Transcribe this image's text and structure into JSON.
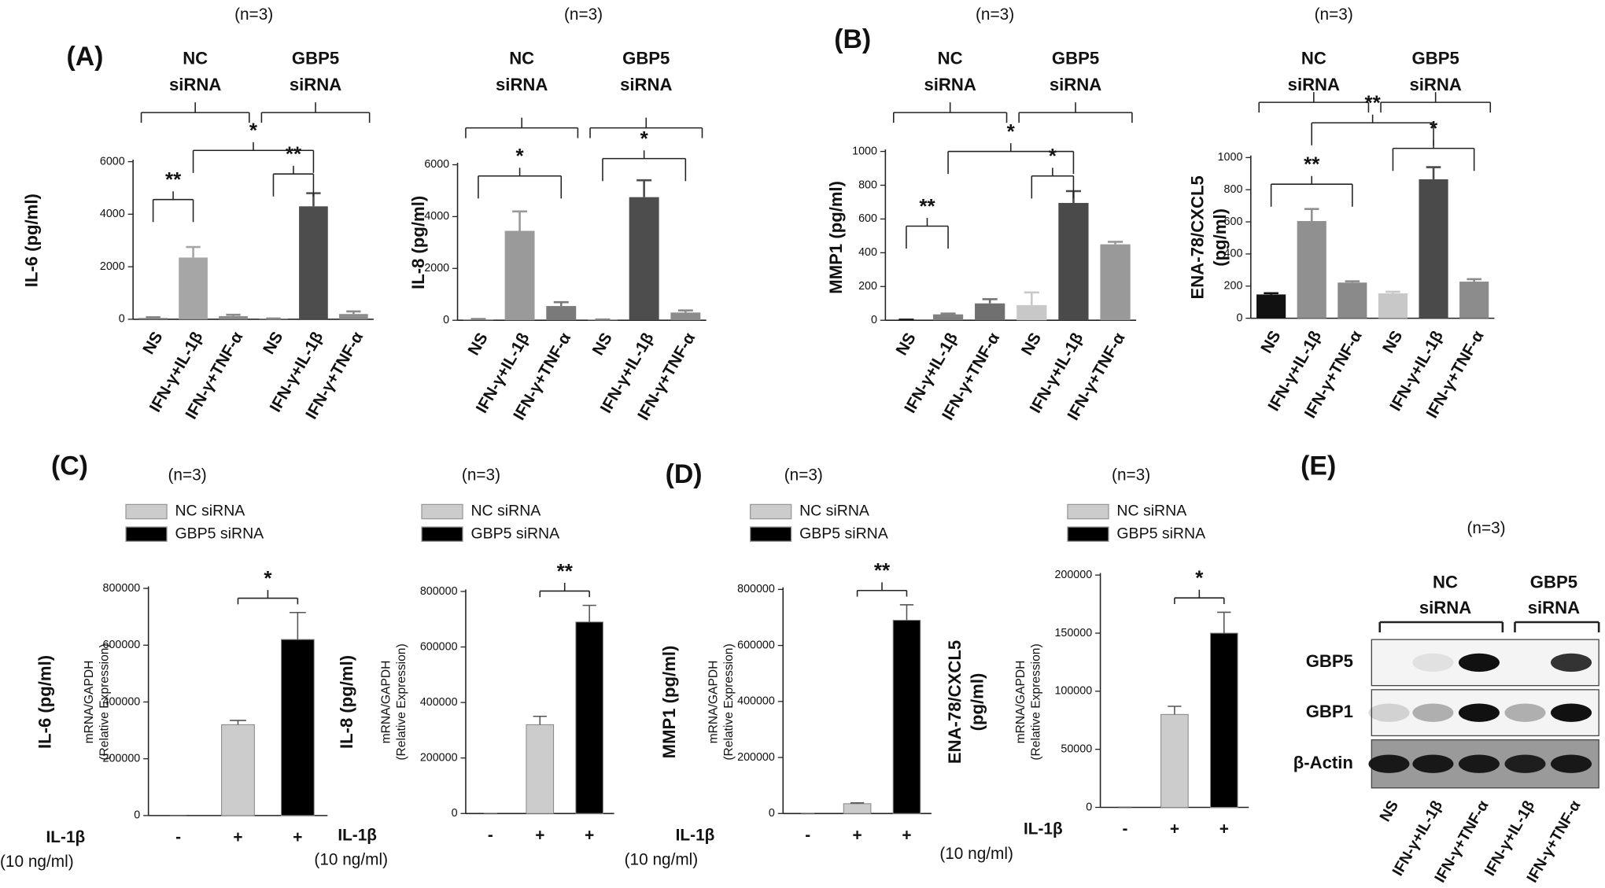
{
  "panel_labels": [
    "(A)",
    "(B)",
    "(C)",
    "(D)",
    "(E)"
  ],
  "chart_data": [
    {
      "type": "bar",
      "title": "(n=3)",
      "ylabel": [
        "IL-6 (pg/ml)"
      ],
      "groups": [
        [
          "NC",
          "siRNA"
        ],
        [
          "GBP5",
          "siRNA"
        ]
      ],
      "categories": [
        "NS",
        "IFN-γ+IL-1β",
        "IFN-γ+TNF-α",
        "NS",
        "IFN-γ+IL-1β",
        "IFN-γ+TNF-α"
      ],
      "values": [
        50,
        2350,
        120,
        20,
        4300,
        200
      ],
      "errors": [
        30,
        400,
        50,
        10,
        500,
        100
      ],
      "colors": [
        "#888888",
        "#a6a6a6",
        "#8c8c8c",
        "#888888",
        "#4d4d4d",
        "#8c8c8c"
      ],
      "annotations": [
        "**",
        "**",
        "*"
      ],
      "ylim": [
        0,
        6000
      ],
      "yticks": [
        0,
        2000,
        4000,
        6000
      ]
    },
    {
      "type": "bar",
      "title": "(n=3)",
      "ylabel": [
        "IL-8 (pg/ml)"
      ],
      "groups": [
        [
          "NC",
          "siRNA"
        ],
        [
          "GBP5",
          "siRNA"
        ]
      ],
      "categories": [
        "NS",
        "IFN-γ+IL-1β",
        "IFN-γ+TNF-α",
        "NS",
        "IFN-γ+IL-1β",
        "IFN-γ+TNF-α"
      ],
      "values": [
        30,
        3450,
        550,
        20,
        4750,
        300
      ],
      "errors": [
        20,
        750,
        150,
        10,
        650,
        80
      ],
      "colors": [
        "#888888",
        "#9a9a9a",
        "#7a7a7a",
        "#888888",
        "#4d4d4d",
        "#8c8c8c"
      ],
      "annotations": [
        "*",
        "*"
      ],
      "ylim": [
        0,
        6000
      ],
      "yticks": [
        0,
        2000,
        4000,
        6000
      ]
    },
    {
      "type": "bar",
      "title": "(n=3)",
      "ylabel": [
        "MMP1 (pg/ml)"
      ],
      "groups": [
        [
          "NC",
          "siRNA"
        ],
        [
          "GBP5",
          "siRNA"
        ]
      ],
      "categories": [
        "NS",
        "IFN-γ+IL-1β",
        "IFN-γ+TNF-α",
        "NS",
        "IFN-γ+IL-1β",
        "IFN-γ+TNF-α"
      ],
      "values": [
        2,
        35,
        100,
        90,
        695,
        450
      ],
      "errors": [
        2,
        5,
        25,
        75,
        70,
        15
      ],
      "colors": [
        "#222222",
        "#808080",
        "#707070",
        "#c8c8c8",
        "#4a4a4a",
        "#999999"
      ],
      "annotations": [
        "**",
        "*",
        "*"
      ],
      "ylim": [
        0,
        1000
      ],
      "yticks": [
        0,
        200,
        400,
        600,
        800,
        1000
      ]
    },
    {
      "type": "bar",
      "title": "(n=3)",
      "ylabel": [
        "ENA-78/CXCL5",
        "(pg/ml)"
      ],
      "groups": [
        [
          "NC",
          "siRNA"
        ],
        [
          "GBP5",
          "siRNA"
        ]
      ],
      "categories": [
        "NS",
        "IFN-γ+IL-1β",
        "IFN-γ+TNF-α",
        "NS",
        "IFN-γ+IL-1β",
        "IFN-γ+TNF-α"
      ],
      "values": [
        148,
        605,
        222,
        155,
        865,
        228
      ],
      "errors": [
        8,
        75,
        8,
        10,
        75,
        15
      ],
      "colors": [
        "#111111",
        "#909090",
        "#8a8a8a",
        "#c8c8c8",
        "#4a4a4a",
        "#8c8c8c"
      ],
      "annotations": [
        "**",
        "*",
        "**"
      ],
      "ylim": [
        0,
        1000
      ],
      "yticks": [
        0,
        200,
        400,
        600,
        800,
        1000
      ]
    },
    {
      "type": "grouped",
      "title": "(n=3)",
      "ylabel": [
        "IL-6 (pg/ml)"
      ],
      "ylabel_sub": [
        "mRNA/GAPDH",
        "(Relative Expression)"
      ],
      "xlabel": [
        "IL-1β",
        "(10 ng/ml)"
      ],
      "categories": [
        "-",
        "+",
        "+"
      ],
      "series": [
        {
          "name": "NC siRNA",
          "color": "#cccccc",
          "values": [
            0,
            320000,
            null
          ],
          "errors": [
            0,
            15000,
            null
          ]
        },
        {
          "name": "GBP5 siRNA",
          "color": "#000000",
          "values": [
            null,
            null,
            620000
          ],
          "errors": [
            null,
            null,
            95000
          ]
        }
      ],
      "annotations": [
        "*"
      ],
      "ylim": [
        0,
        800000
      ],
      "yticks": [
        0,
        200000,
        400000,
        600000,
        800000
      ]
    },
    {
      "type": "grouped",
      "title": "(n=3)",
      "ylabel": [
        "IL-8 (pg/ml)"
      ],
      "ylabel_sub": [
        "mRNA/GAPDH",
        "(Relative Expression)"
      ],
      "xlabel": [
        "IL-1β",
        "(10 ng/ml)"
      ],
      "categories": [
        "-",
        "+",
        "+"
      ],
      "series": [
        {
          "name": "NC siRNA",
          "color": "#cccccc",
          "values": [
            0,
            320000,
            null
          ],
          "errors": [
            0,
            30000,
            null
          ]
        },
        {
          "name": "GBP5 siRNA",
          "color": "#000000",
          "values": [
            null,
            null,
            690000
          ],
          "errors": [
            null,
            null,
            60000
          ]
        }
      ],
      "annotations": [
        "**"
      ],
      "ylim": [
        0,
        800000
      ],
      "yticks": [
        0,
        200000,
        400000,
        600000,
        800000
      ]
    },
    {
      "type": "grouped",
      "title": "(n=3)",
      "ylabel": [
        "MMP1 (pg/ml)"
      ],
      "ylabel_sub": [
        "mRNA/GAPDH",
        "(Relative Expression)"
      ],
      "xlabel": [
        "IL-1β",
        "(10 ng/ml)"
      ],
      "categories": [
        "-",
        "+",
        "+"
      ],
      "series": [
        {
          "name": "NC siRNA",
          "color": "#cccccc",
          "values": [
            0,
            35000,
            null
          ],
          "errors": [
            0,
            3000,
            null
          ]
        },
        {
          "name": "GBP5 siRNA",
          "color": "#000000",
          "values": [
            null,
            null,
            690000
          ],
          "errors": [
            null,
            null,
            55000
          ]
        }
      ],
      "annotations": [
        "**"
      ],
      "ylim": [
        0,
        800000
      ],
      "yticks": [
        0,
        200000,
        400000,
        600000,
        800000
      ]
    },
    {
      "type": "grouped",
      "title": "(n=3)",
      "ylabel": [
        "ENA-78/CXCL5",
        "(pg/ml)"
      ],
      "ylabel_sub": [
        "mRNA/GAPDH",
        "(Relative Expression)"
      ],
      "xlabel": [
        "IL-1β",
        "(10 ng/ml)"
      ],
      "categories": [
        "-",
        "+",
        "+"
      ],
      "series": [
        {
          "name": "NC siRNA",
          "color": "#cccccc",
          "values": [
            0,
            80000,
            null
          ],
          "errors": [
            0,
            7000,
            null
          ]
        },
        {
          "name": "GBP5 siRNA",
          "color": "#000000",
          "values": [
            null,
            null,
            150000
          ],
          "errors": [
            null,
            null,
            18000
          ]
        }
      ],
      "annotations": [
        "*"
      ],
      "ylim": [
        0,
        200000
      ],
      "yticks": [
        0,
        50000,
        100000,
        150000,
        200000
      ]
    }
  ],
  "blot": {
    "title": "(n=3)",
    "groups": [
      [
        "NC",
        "siRNA"
      ],
      [
        "GBP5",
        "siRNA"
      ]
    ],
    "rows": [
      "GBP5",
      "GBP1",
      "β-Actin"
    ],
    "lanes": [
      "NS",
      "IFN-γ+IL-1β",
      "IFN-γ+TNF-α",
      "IFN-γ+IL-1β",
      "IFN-γ+TNF-α"
    ]
  }
}
